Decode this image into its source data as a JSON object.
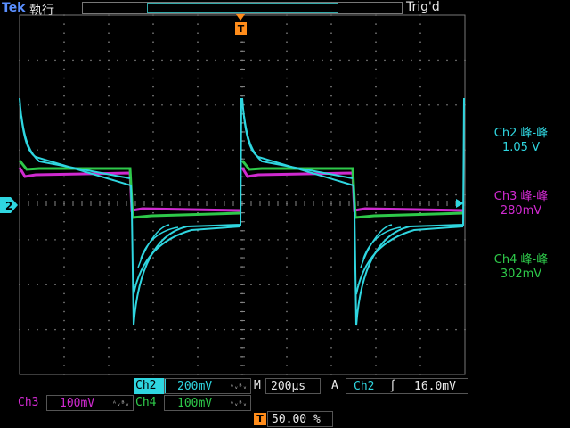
{
  "header": {
    "brand": "Tek",
    "run_state": "執行",
    "trigger_status": "Trig'd"
  },
  "measurements": [
    {
      "label": "Ch2 峰-峰",
      "value": "1.05 V",
      "color": "#2fd6e0"
    },
    {
      "label": "Ch3 峰-峰",
      "value": "280mV",
      "color": "#d02ad0"
    },
    {
      "label": "Ch4 峰-峰",
      "value": "302mV",
      "color": "#2ec94a"
    }
  ],
  "markers": {
    "ground_ch2": "2",
    "trigger_pos": "T"
  },
  "channels": {
    "ch2": {
      "name": "Ch2",
      "scale": "200mV",
      "color": "#2fd6e0"
    },
    "ch3": {
      "name": "Ch3",
      "scale": "100mV",
      "color": "#d02ad0"
    },
    "ch4": {
      "name": "Ch4",
      "scale": "100mV",
      "color": "#2ec94a"
    }
  },
  "timebase": {
    "label": "M",
    "value": "200µs"
  },
  "trigger": {
    "mode": "A",
    "source": "Ch2",
    "slope_icon": "rising-edge-icon",
    "slope_glyph": "∫",
    "level": "16.0mV"
  },
  "horizontal_position": {
    "icon": "T",
    "value": "50.00 %"
  },
  "bandwidth_icon": "ᴬᵥᴮᵥ"
}
